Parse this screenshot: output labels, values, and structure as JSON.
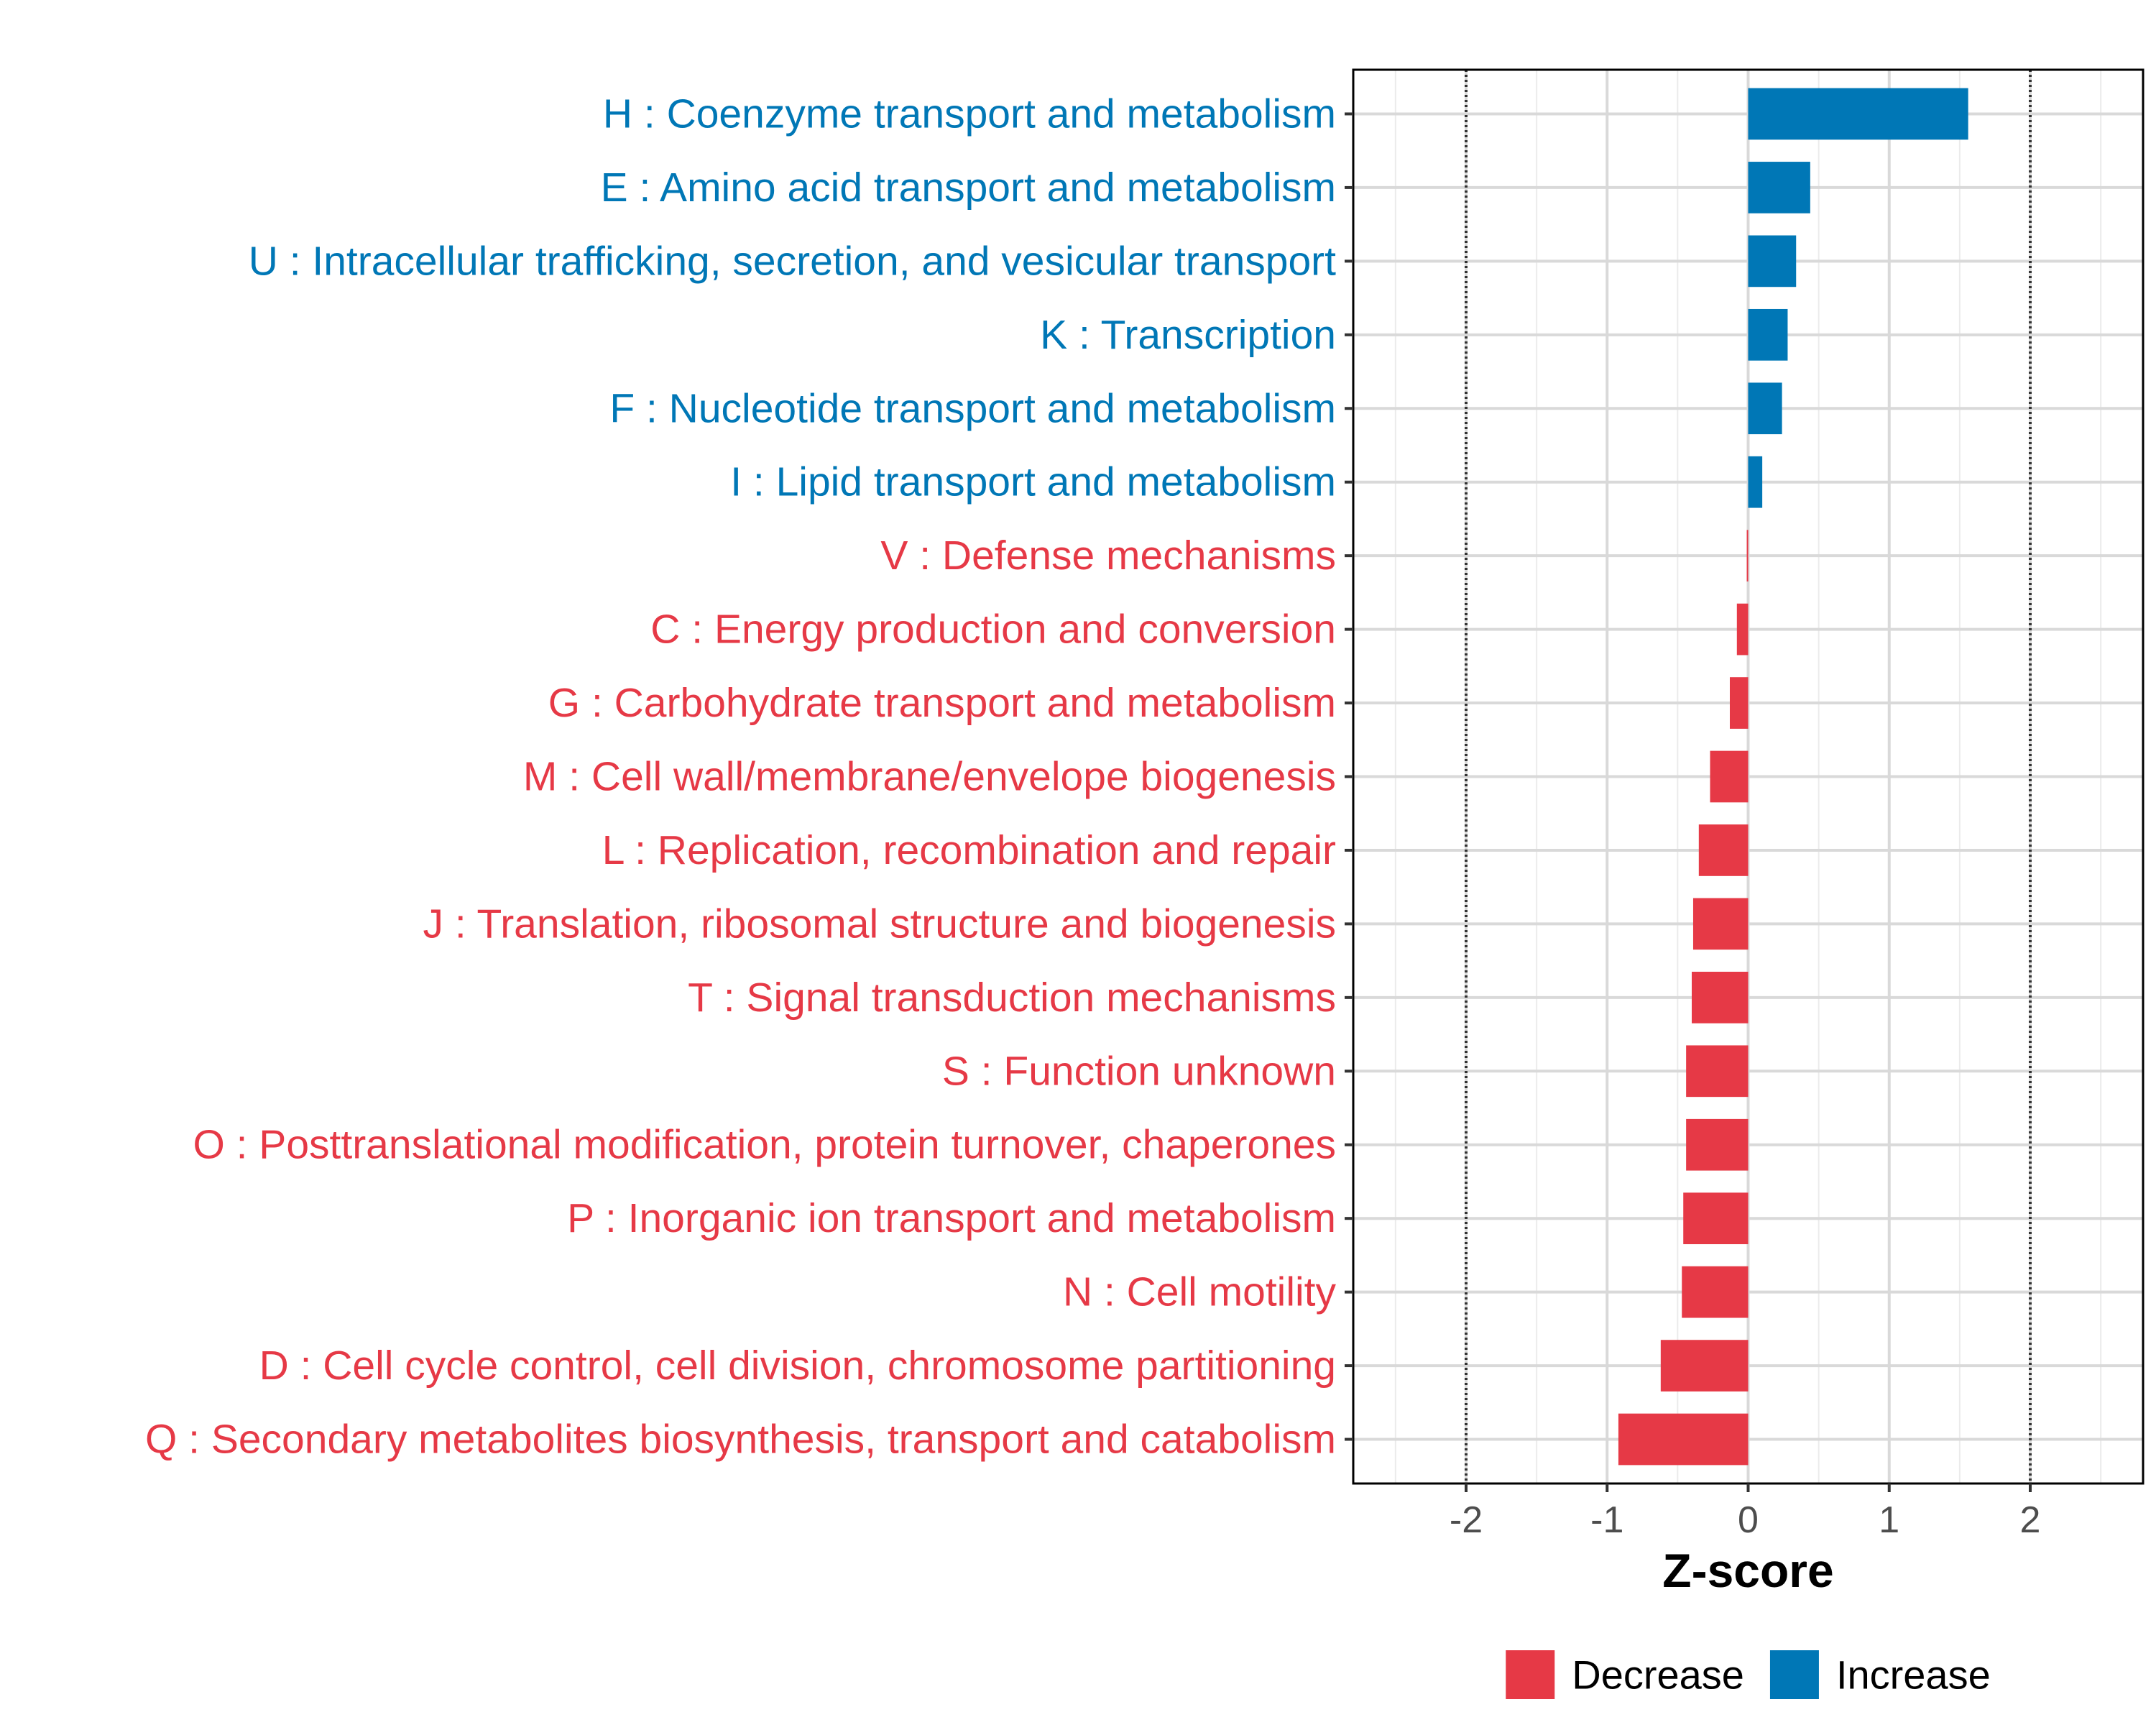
{
  "chart_data": {
    "type": "bar",
    "orientation": "horizontal",
    "title": "",
    "xlabel": "Z-score",
    "ylabel": "",
    "xlim": [
      -2.8,
      2.8
    ],
    "x_ticks": [
      -2,
      -1,
      0,
      1,
      2
    ],
    "tick_labels": [
      "-2",
      "-1",
      "0",
      "1",
      "2"
    ],
    "reference_lines": [
      -2,
      2
    ],
    "grid": true,
    "categories": [
      "H : Coenzyme transport and metabolism",
      "E : Amino acid transport and metabolism",
      "U : Intracellular trafficking, secretion, and vesicular transport",
      "K : Transcription",
      "F : Nucleotide transport and metabolism",
      "I : Lipid transport and metabolism",
      "V : Defense mechanisms",
      "C : Energy production and conversion",
      "G : Carbohydrate transport and metabolism",
      "M : Cell wall/membrane/envelope biogenesis",
      "L : Replication, recombination and repair",
      "J : Translation, ribosomal structure and biogenesis",
      "T : Signal transduction mechanisms",
      "S : Function unknown",
      "O : Posttranslational modification, protein turnover, chaperones",
      "P : Inorganic ion transport and metabolism",
      "N : Cell motility",
      "D : Cell cycle control, cell division, chromosome partitioning",
      "Q : Secondary metabolites biosynthesis, transport and catabolism"
    ],
    "values": [
      1.56,
      0.44,
      0.34,
      0.28,
      0.24,
      0.1,
      -0.01,
      -0.08,
      -0.13,
      -0.27,
      -0.35,
      -0.39,
      -0.4,
      -0.44,
      -0.44,
      -0.46,
      -0.47,
      -0.62,
      -0.92
    ],
    "groups": [
      "Increase",
      "Increase",
      "Increase",
      "Increase",
      "Increase",
      "Increase",
      "Decrease",
      "Decrease",
      "Decrease",
      "Decrease",
      "Decrease",
      "Decrease",
      "Decrease",
      "Decrease",
      "Decrease",
      "Decrease",
      "Decrease",
      "Decrease",
      "Decrease"
    ],
    "legend": {
      "position": "bottom",
      "entries": [
        {
          "label": "Decrease",
          "color": "#e63946"
        },
        {
          "label": "Increase",
          "color": "#0077b6"
        }
      ]
    },
    "colors": {
      "Decrease": "#e63946",
      "Increase": "#0077b6"
    }
  }
}
